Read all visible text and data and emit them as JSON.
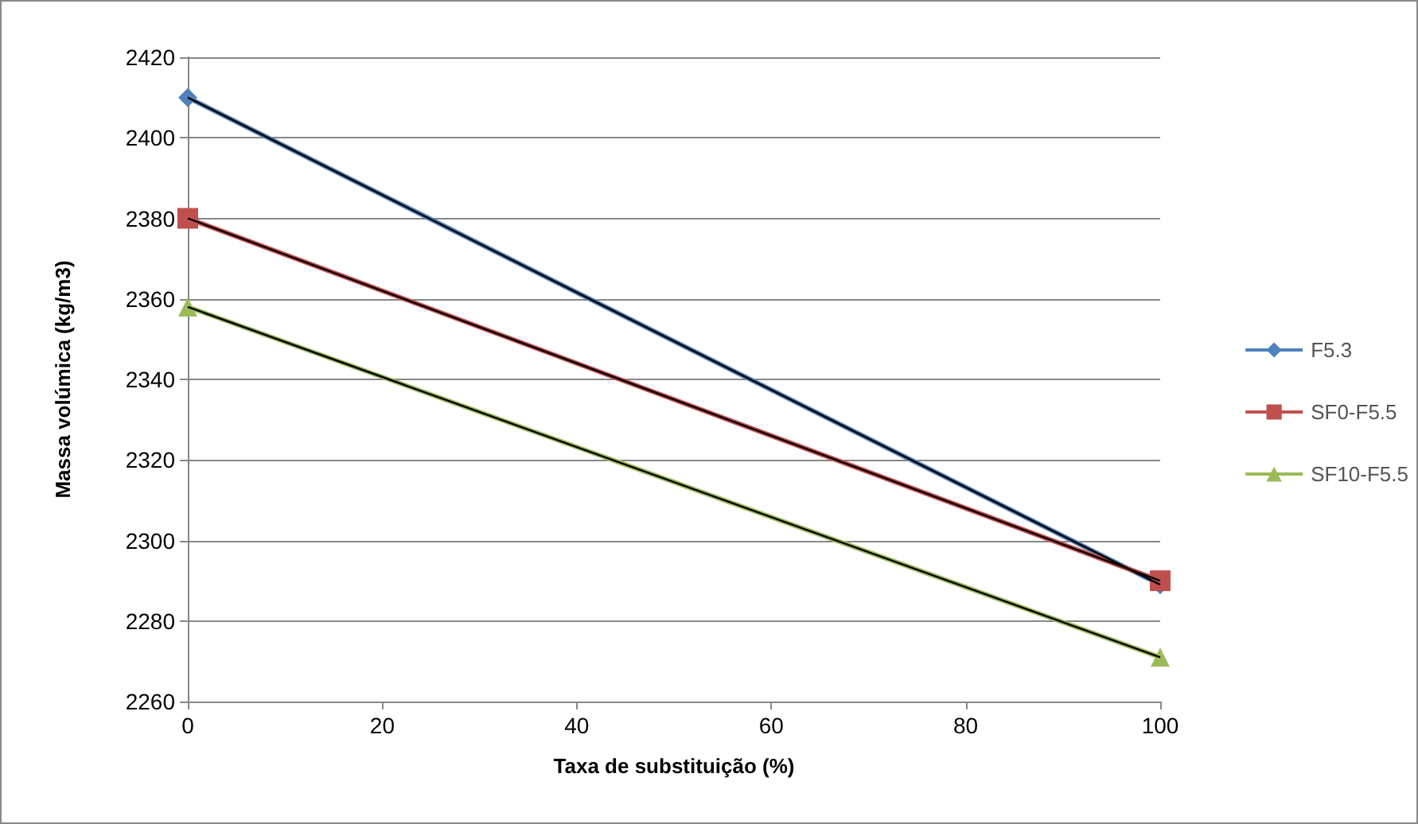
{
  "chart_data": {
    "type": "line",
    "xlabel": "Taxa de substituição (%)",
    "ylabel": "Massa volúmica (kg/m3)",
    "x": [
      0,
      100
    ],
    "xlim": [
      0,
      100
    ],
    "xticks": [
      0,
      20,
      40,
      60,
      80,
      100
    ],
    "ylim": [
      2260,
      2420
    ],
    "yticks": [
      2260,
      2280,
      2300,
      2320,
      2340,
      2360,
      2380,
      2400,
      2420
    ],
    "grid": "y",
    "legend": "right",
    "series": [
      {
        "name": "F5.3",
        "color": "#4f81bd",
        "values": [
          2410,
          2289
        ],
        "marker": "diamond"
      },
      {
        "name": "SF0-F5.5",
        "color": "#c0504d",
        "values": [
          2380,
          2290
        ],
        "marker": "square"
      },
      {
        "name": "SF10-F5.5",
        "color": "#9bbb59",
        "values": [
          2358,
          2271
        ],
        "marker": "triangle"
      },
      {
        "color": "#000000",
        "values": [
          2410,
          2289
        ],
        "marker": "none"
      },
      {
        "color": "#000000",
        "values": [
          2380,
          2290
        ],
        "marker": "none"
      },
      {
        "color": "#000000",
        "values": [
          2358,
          2271
        ],
        "marker": "none"
      }
    ]
  }
}
